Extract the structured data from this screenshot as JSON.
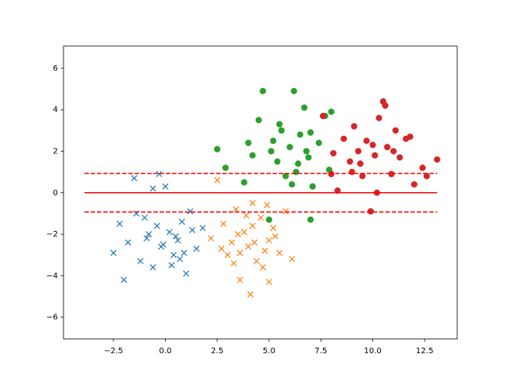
{
  "chart_data": {
    "type": "scatter",
    "xlim": [
      -4.91,
      14.07
    ],
    "ylim": [
      -7.05,
      7.07
    ],
    "xticks": [
      {
        "value": -2.5,
        "label": "−2.5"
      },
      {
        "value": 0,
        "label": "0.0"
      },
      2.5,
      {
        "value": 5,
        "label": "5.0"
      },
      7.5,
      {
        "value": 10,
        "label": "10.0"
      },
      12.5
    ],
    "yticks": [
      {
        "value": -6,
        "label": "−6"
      },
      {
        "value": -4,
        "label": "−4"
      },
      {
        "value": -2,
        "label": "−2"
      },
      0,
      2,
      4,
      6
    ],
    "series": [
      {
        "color": "#1f77b4",
        "marker": "x",
        "x": [
          -2.5,
          -2.2,
          -1.8,
          -1.5,
          -1.2,
          -1.0,
          -0.8,
          -0.6,
          -0.4,
          -0.2,
          0.0,
          0.2,
          0.4,
          0.6,
          0.8,
          1.0,
          1.2,
          1.5,
          1.8,
          -0.9,
          -0.3,
          0.3,
          0.9,
          -1.4,
          -0.1,
          0.7,
          1.3,
          -2.0,
          0.5,
          -0.6
        ],
        "values": [
          -2.9,
          -1.5,
          -2.4,
          0.7,
          -3.3,
          -1.2,
          -2.0,
          -3.6,
          -1.6,
          -2.6,
          0.3,
          -1.9,
          -3.0,
          -2.3,
          -1.4,
          -3.9,
          -0.9,
          -2.7,
          -1.7,
          -2.2,
          0.9,
          -3.5,
          -2.9,
          -1.0,
          -2.5,
          -3.2,
          -1.8,
          -4.2,
          -2.1,
          0.2
        ]
      },
      {
        "color": "#ff7f0e",
        "marker": "x",
        "x": [
          2.2,
          2.5,
          2.8,
          3.0,
          3.2,
          3.4,
          3.6,
          3.8,
          4.0,
          4.2,
          4.4,
          4.6,
          4.8,
          5.0,
          5.2,
          5.5,
          5.8,
          6.1,
          3.5,
          4.1,
          3.9,
          4.3,
          4.7,
          2.7,
          5.3,
          3.3,
          4.9,
          4.2,
          3.6,
          5.0
        ],
        "values": [
          -2.2,
          0.6,
          -1.5,
          -3.0,
          -2.4,
          -0.8,
          -4.2,
          -1.9,
          -2.6,
          -0.5,
          -3.3,
          -1.2,
          -2.8,
          -4.3,
          -1.7,
          -2.9,
          -0.9,
          -3.2,
          -2.0,
          -4.9,
          -1.1,
          -2.4,
          -3.6,
          -2.7,
          -2.1,
          -3.4,
          -0.6,
          -1.6,
          -2.9,
          -2.3
        ]
      },
      {
        "color": "#2ca02c",
        "marker": "o",
        "x": [
          2.5,
          2.9,
          3.8,
          4.2,
          4.5,
          4.7,
          5.0,
          5.2,
          5.4,
          5.6,
          5.8,
          6.0,
          6.2,
          6.3,
          6.5,
          6.7,
          6.9,
          7.1,
          7.4,
          7.7,
          8.0,
          5.1,
          6.4,
          7.0,
          6.1,
          4.0,
          7.9,
          5.5,
          6.8,
          7.0
        ],
        "values": [
          2.1,
          1.2,
          0.5,
          1.8,
          3.5,
          4.9,
          -1.3,
          2.5,
          1.5,
          3.0,
          0.8,
          2.2,
          4.9,
          1.0,
          2.8,
          4.1,
          1.7,
          0.3,
          2.4,
          3.7,
          3.9,
          2.0,
          1.4,
          2.9,
          0.4,
          2.4,
          1.1,
          3.3,
          2.0,
          -1.3
        ]
      },
      {
        "color": "#d62728",
        "marker": "o",
        "x": [
          7.6,
          8.0,
          8.3,
          8.6,
          8.9,
          9.1,
          9.3,
          9.5,
          9.7,
          9.9,
          10.1,
          10.3,
          10.5,
          10.7,
          10.9,
          11.1,
          11.3,
          11.6,
          12.0,
          12.4,
          13.1,
          10.0,
          9.4,
          10.6,
          11.8,
          8.1,
          10.2,
          9.0,
          11.0,
          12.6
        ],
        "values": [
          3.7,
          0.9,
          0.1,
          2.6,
          1.5,
          3.2,
          2.0,
          0.8,
          2.5,
          -0.9,
          1.8,
          3.6,
          4.4,
          2.2,
          0.9,
          3.0,
          1.7,
          2.6,
          0.4,
          1.2,
          1.6,
          2.3,
          1.4,
          4.2,
          2.7,
          1.9,
          0.0,
          1.0,
          2.0,
          0.8
        ]
      }
    ],
    "lines": [
      {
        "y": 0,
        "xmin": -3.9,
        "xmax": 13.1,
        "color": "#ff0000",
        "linestyle": "solid"
      },
      {
        "y": 0.93,
        "xmin": -3.9,
        "xmax": 13.1,
        "color": "#ff0000",
        "linestyle": "dashed"
      },
      {
        "y": -0.93,
        "xmin": -3.9,
        "xmax": 13.1,
        "color": "#ff0000",
        "linestyle": "dashed"
      }
    ]
  }
}
